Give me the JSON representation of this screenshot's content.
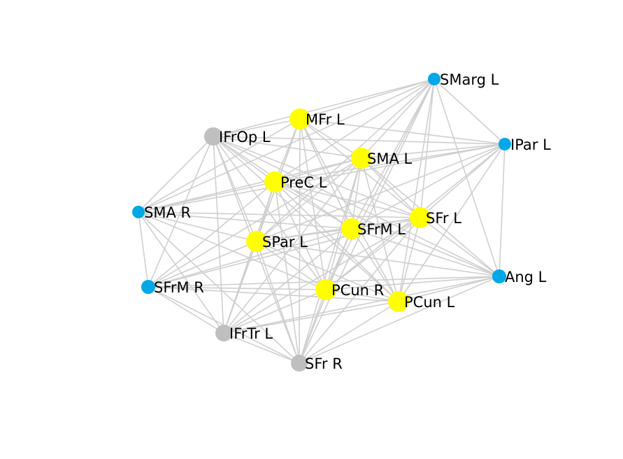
{
  "colors": {
    "edge": "#cfcfcf",
    "group_yellow": "#ffff00",
    "group_blue": "#00a8e8",
    "group_gray": "#bfbfbf",
    "label": "#000000"
  },
  "nodes": [
    {
      "id": "smarg-l",
      "label": "SMarg L",
      "group": "group_blue"
    },
    {
      "id": "mfr-l",
      "label": "MFr L",
      "group": "group_yellow"
    },
    {
      "id": "ifrop-l",
      "label": "IFrOp L",
      "group": "group_gray"
    },
    {
      "id": "ipar-l",
      "label": "IPar L",
      "group": "group_blue"
    },
    {
      "id": "sma-l",
      "label": "SMA L",
      "group": "group_yellow"
    },
    {
      "id": "prec-l",
      "label": "PreC L",
      "group": "group_yellow"
    },
    {
      "id": "sma-r",
      "label": "SMA R",
      "group": "group_blue"
    },
    {
      "id": "sfr-l",
      "label": "SFr L",
      "group": "group_yellow"
    },
    {
      "id": "sfrm-l",
      "label": "SFrM L",
      "group": "group_yellow"
    },
    {
      "id": "spar-l",
      "label": "SPar L",
      "group": "group_yellow"
    },
    {
      "id": "ang-l",
      "label": "Ang L",
      "group": "group_blue"
    },
    {
      "id": "sfrm-r",
      "label": "SFrM R",
      "group": "group_blue"
    },
    {
      "id": "pcun-r",
      "label": "PCun R",
      "group": "group_yellow"
    },
    {
      "id": "pcun-l",
      "label": "PCun L",
      "group": "group_yellow"
    },
    {
      "id": "ifrtr-l",
      "label": "IFrTr L",
      "group": "group_gray"
    },
    {
      "id": "sfr-r",
      "label": "SFr R",
      "group": "group_gray"
    }
  ],
  "edges": [
    [
      "smarg-l",
      "mfr-l"
    ],
    [
      "smarg-l",
      "ifrop-l"
    ],
    [
      "smarg-l",
      "ipar-l"
    ],
    [
      "smarg-l",
      "sma-l"
    ],
    [
      "smarg-l",
      "prec-l"
    ],
    [
      "smarg-l",
      "sfr-l"
    ],
    [
      "smarg-l",
      "sfrm-l"
    ],
    [
      "smarg-l",
      "spar-l"
    ],
    [
      "smarg-l",
      "ang-l"
    ],
    [
      "smarg-l",
      "pcun-r"
    ],
    [
      "smarg-l",
      "pcun-l"
    ],
    [
      "smarg-l",
      "sfr-r"
    ],
    [
      "smarg-l",
      "sma-r"
    ],
    [
      "mfr-l",
      "ifrop-l"
    ],
    [
      "mfr-l",
      "ipar-l"
    ],
    [
      "mfr-l",
      "sma-l"
    ],
    [
      "mfr-l",
      "prec-l"
    ],
    [
      "mfr-l",
      "sfr-l"
    ],
    [
      "mfr-l",
      "sfrm-l"
    ],
    [
      "mfr-l",
      "spar-l"
    ],
    [
      "mfr-l",
      "pcun-r"
    ],
    [
      "mfr-l",
      "pcun-l"
    ],
    [
      "mfr-l",
      "ifrtr-l"
    ],
    [
      "mfr-l",
      "sfr-r"
    ],
    [
      "mfr-l",
      "sma-r"
    ],
    [
      "ifrop-l",
      "ipar-l"
    ],
    [
      "ifrop-l",
      "sma-l"
    ],
    [
      "ifrop-l",
      "prec-l"
    ],
    [
      "ifrop-l",
      "sma-r"
    ],
    [
      "ifrop-l",
      "sfr-l"
    ],
    [
      "ifrop-l",
      "sfrm-l"
    ],
    [
      "ifrop-l",
      "spar-l"
    ],
    [
      "ifrop-l",
      "pcun-r"
    ],
    [
      "ifrop-l",
      "pcun-l"
    ],
    [
      "ifrop-l",
      "ifrtr-l"
    ],
    [
      "ifrop-l",
      "sfr-r"
    ],
    [
      "ifrop-l",
      "sfrm-r"
    ],
    [
      "ifrop-l",
      "ang-l"
    ],
    [
      "ipar-l",
      "sma-l"
    ],
    [
      "ipar-l",
      "prec-l"
    ],
    [
      "ipar-l",
      "sfr-l"
    ],
    [
      "ipar-l",
      "sfrm-l"
    ],
    [
      "ipar-l",
      "spar-l"
    ],
    [
      "ipar-l",
      "ang-l"
    ],
    [
      "ipar-l",
      "pcun-r"
    ],
    [
      "ipar-l",
      "pcun-l"
    ],
    [
      "ipar-l",
      "sma-r"
    ],
    [
      "sma-l",
      "prec-l"
    ],
    [
      "sma-l",
      "sma-r"
    ],
    [
      "sma-l",
      "sfr-l"
    ],
    [
      "sma-l",
      "sfrm-l"
    ],
    [
      "sma-l",
      "spar-l"
    ],
    [
      "sma-l",
      "pcun-r"
    ],
    [
      "sma-l",
      "pcun-l"
    ],
    [
      "sma-l",
      "ifrtr-l"
    ],
    [
      "sma-l",
      "sfr-r"
    ],
    [
      "sma-l",
      "ang-l"
    ],
    [
      "sma-l",
      "sfrm-r"
    ],
    [
      "prec-l",
      "sma-r"
    ],
    [
      "prec-l",
      "sfr-l"
    ],
    [
      "prec-l",
      "sfrm-l"
    ],
    [
      "prec-l",
      "spar-l"
    ],
    [
      "prec-l",
      "ang-l"
    ],
    [
      "prec-l",
      "sfrm-r"
    ],
    [
      "prec-l",
      "pcun-r"
    ],
    [
      "prec-l",
      "pcun-l"
    ],
    [
      "prec-l",
      "ifrtr-l"
    ],
    [
      "prec-l",
      "sfr-r"
    ],
    [
      "sma-r",
      "sfrm-l"
    ],
    [
      "sma-r",
      "spar-l"
    ],
    [
      "sma-r",
      "sfrm-r"
    ],
    [
      "sma-r",
      "pcun-r"
    ],
    [
      "sma-r",
      "ifrtr-l"
    ],
    [
      "sma-r",
      "sfr-r"
    ],
    [
      "sma-r",
      "sfr-l"
    ],
    [
      "sfr-l",
      "sfrm-l"
    ],
    [
      "sfr-l",
      "spar-l"
    ],
    [
      "sfr-l",
      "ang-l"
    ],
    [
      "sfr-l",
      "pcun-r"
    ],
    [
      "sfr-l",
      "pcun-l"
    ],
    [
      "sfr-l",
      "ifrtr-l"
    ],
    [
      "sfr-l",
      "sfr-r"
    ],
    [
      "sfr-l",
      "sfrm-r"
    ],
    [
      "sfrm-l",
      "spar-l"
    ],
    [
      "sfrm-l",
      "ang-l"
    ],
    [
      "sfrm-l",
      "sfrm-r"
    ],
    [
      "sfrm-l",
      "pcun-r"
    ],
    [
      "sfrm-l",
      "pcun-l"
    ],
    [
      "sfrm-l",
      "ifrtr-l"
    ],
    [
      "sfrm-l",
      "sfr-r"
    ],
    [
      "spar-l",
      "ang-l"
    ],
    [
      "spar-l",
      "sfrm-r"
    ],
    [
      "spar-l",
      "pcun-r"
    ],
    [
      "spar-l",
      "pcun-l"
    ],
    [
      "spar-l",
      "ifrtr-l"
    ],
    [
      "spar-l",
      "sfr-r"
    ],
    [
      "ang-l",
      "pcun-r"
    ],
    [
      "ang-l",
      "pcun-l"
    ],
    [
      "ang-l",
      "ifrtr-l"
    ],
    [
      "ang-l",
      "sfr-r"
    ],
    [
      "ang-l",
      "sfrm-r"
    ],
    [
      "sfrm-r",
      "pcun-r"
    ],
    [
      "sfrm-r",
      "ifrtr-l"
    ],
    [
      "sfrm-r",
      "sfr-r"
    ],
    [
      "sfrm-r",
      "pcun-l"
    ],
    [
      "pcun-r",
      "pcun-l"
    ],
    [
      "pcun-r",
      "ifrtr-l"
    ],
    [
      "pcun-r",
      "sfr-r"
    ],
    [
      "pcun-l",
      "ifrtr-l"
    ],
    [
      "pcun-l",
      "sfr-r"
    ],
    [
      "ifrtr-l",
      "sfr-r"
    ]
  ]
}
